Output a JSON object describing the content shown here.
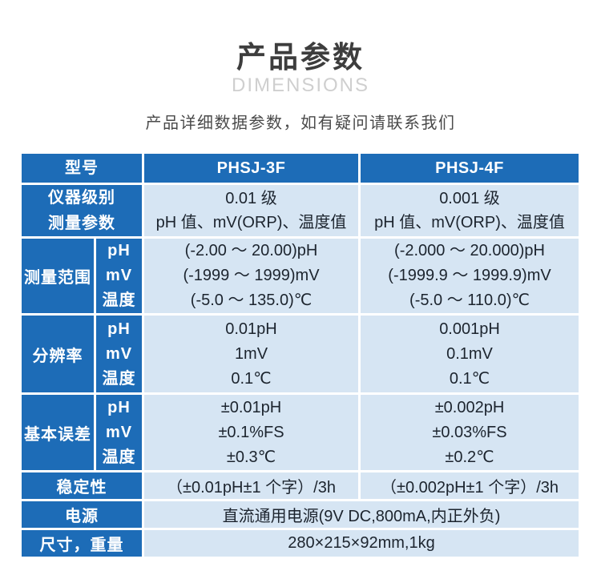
{
  "page": {
    "title": "产品参数",
    "subtitle_en": "DIMENSIONS",
    "note": "产品详细数据参数，如有疑问请联系我们"
  },
  "colors": {
    "header_blue": "#1d6cb7",
    "cell_light_blue": "#d6e5f3",
    "cell_text": "#1c242e",
    "title_gray": "#3d3d3d",
    "dimensions_gray": "#cfcfcf",
    "note_gray": "#4a4a4a"
  },
  "table": {
    "header": {
      "corner_lines": [
        "型号",
        "仪器级别",
        "测量参数"
      ],
      "columns": [
        "PHSJ-3F",
        "PHSJ-4F"
      ],
      "spec_cells": [
        {
          "lines": [
            "0.01 级",
            "pH 值、mV(ORP)、温度值"
          ]
        },
        {
          "lines": [
            "0.001 级",
            "pH 值、mV(ORP)、温度值"
          ]
        }
      ]
    },
    "groups": [
      {
        "label": "测量范围",
        "sub": [
          "pH",
          "mV",
          "温度"
        ],
        "col1": [
          "(-2.00 ～ 20.00)pH",
          "(-1999 ～ 1999)mV",
          "(-5.0 ～ 135.0)℃"
        ],
        "col2": [
          "(-2.000 ～ 20.000)pH",
          "(-1999.9 ～ 1999.9)mV",
          "(-5.0 ～ 110.0)℃"
        ]
      },
      {
        "label": "分辨率",
        "sub": [
          "pH",
          "mV",
          "温度"
        ],
        "col1": [
          "0.01pH",
          "1mV",
          "0.1℃"
        ],
        "col2": [
          "0.001pH",
          "0.1mV",
          "0.1℃"
        ]
      },
      {
        "label": "基本误差",
        "sub": [
          "pH",
          "mV",
          "温度"
        ],
        "col1": [
          "±0.01pH",
          "±0.1%FS",
          "±0.3℃"
        ],
        "col2": [
          "±0.002pH",
          "±0.03%FS",
          "±0.2℃"
        ]
      }
    ],
    "rows": {
      "stability": {
        "label": "稳定性",
        "col1": "（±0.01pH±1 个字）/3h",
        "col2": "（±0.002pH±1 个字）/3h"
      },
      "power": {
        "label": "电源",
        "value": "直流通用电源(9V DC,800mA,内正外负)"
      },
      "size": {
        "label": "尺寸，重量",
        "value": "280×215×92mm,1kg"
      }
    }
  }
}
